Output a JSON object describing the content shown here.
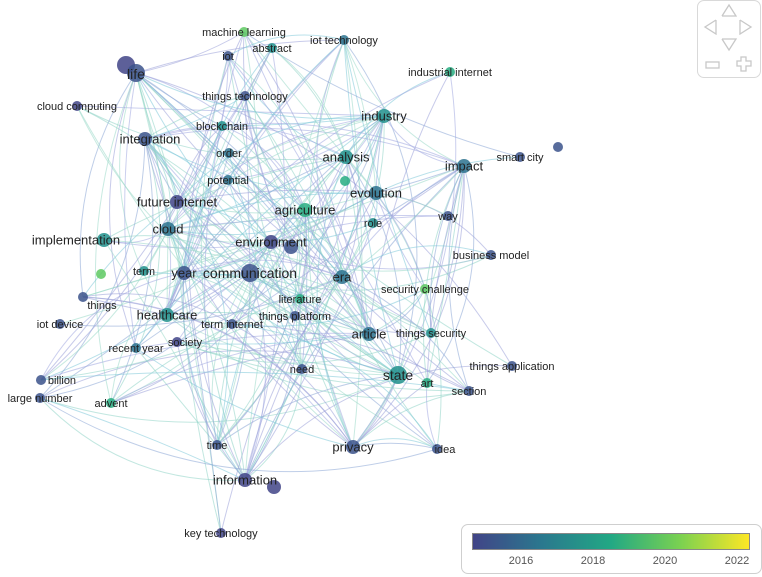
{
  "colors": {
    "c2015": "#414487",
    "c2016": "#3b528b",
    "c2017": "#2c728e",
    "c2018": "#21918c",
    "c2019": "#27ad81",
    "c2020": "#5ec962",
    "c2022": "#fde725"
  },
  "legend": {
    "ticks": [
      "2016",
      "2018",
      "2020",
      "2022"
    ],
    "gradient": [
      "#414487",
      "#2a788e",
      "#22a884",
      "#7ad151",
      "#fde725"
    ]
  },
  "navigation": {
    "up_icon": "chevron-up-icon",
    "down_icon": "chevron-down-icon",
    "left_icon": "chevron-left-icon",
    "right_icon": "chevron-right-icon",
    "zoom_out_icon": "minus-icon",
    "zoom_in_icon": "plus-icon"
  },
  "nodes": [
    {
      "id": "life",
      "label": "life",
      "year": 2016,
      "size": 3
    },
    {
      "id": "iot",
      "label": "iot",
      "year": 2016,
      "size": 1
    },
    {
      "id": "machine-learning",
      "label": "machine learning",
      "year": 2020,
      "size": 1
    },
    {
      "id": "abstract",
      "label": "abstract",
      "year": 2018,
      "size": 1
    },
    {
      "id": "iot-technology",
      "label": "iot technology",
      "year": 2017,
      "size": 1
    },
    {
      "id": "industrial-internet",
      "label": "industrial internet",
      "year": 2019,
      "size": 1
    },
    {
      "id": "things-technology",
      "label": "things technology",
      "year": 2016,
      "size": 1
    },
    {
      "id": "cloud-computing",
      "label": "cloud computing",
      "year": 2015,
      "size": 1
    },
    {
      "id": "integration",
      "label": "integration",
      "year": 2016,
      "size": 2
    },
    {
      "id": "blockchain",
      "label": "blockchain",
      "year": 2018,
      "size": 1
    },
    {
      "id": "industry",
      "label": "industry",
      "year": 2018,
      "size": 2
    },
    {
      "id": "order",
      "label": "order",
      "year": 2017,
      "size": 1
    },
    {
      "id": "analysis",
      "label": "analysis",
      "year": 2018,
      "size": 2
    },
    {
      "id": "impact",
      "label": "impact",
      "year": 2017,
      "size": 2
    },
    {
      "id": "smart-city",
      "label": "smart city",
      "year": 2016,
      "size": 1
    },
    {
      "id": "potential",
      "label": "potential",
      "year": 2017,
      "size": 1
    },
    {
      "id": "evolution",
      "label": "evolution",
      "year": 2017,
      "size": 2
    },
    {
      "id": "future-internet",
      "label": "future internet",
      "year": 2015,
      "size": 2
    },
    {
      "id": "agriculture",
      "label": "agriculture",
      "year": 2019,
      "size": 2
    },
    {
      "id": "way",
      "label": "way",
      "year": 2016,
      "size": 1
    },
    {
      "id": "role",
      "label": "role",
      "year": 2018,
      "size": 1
    },
    {
      "id": "cloud",
      "label": "cloud",
      "year": 2017,
      "size": 2
    },
    {
      "id": "implementation",
      "label": "implementation",
      "year": 2018,
      "size": 2
    },
    {
      "id": "environment",
      "label": "environment",
      "year": 2015,
      "size": 2
    },
    {
      "id": "business-model",
      "label": "business model",
      "year": 2016,
      "size": 1
    },
    {
      "id": "term",
      "label": "term",
      "year": 2018,
      "size": 1
    },
    {
      "id": "year",
      "label": "year",
      "year": 2016,
      "size": 2
    },
    {
      "id": "communication",
      "label": "communication",
      "year": 2016,
      "size": 3
    },
    {
      "id": "era",
      "label": "era",
      "year": 2017,
      "size": 2
    },
    {
      "id": "things",
      "label": "things",
      "year": 2016,
      "size": 1
    },
    {
      "id": "security-challenge",
      "label": "security challenge",
      "year": 2020,
      "size": 1
    },
    {
      "id": "literature",
      "label": "literature",
      "year": 2019,
      "size": 1
    },
    {
      "id": "healthcare",
      "label": "healthcare",
      "year": 2018,
      "size": 2
    },
    {
      "id": "things-platform",
      "label": "things platform",
      "year": 2016,
      "size": 1
    },
    {
      "id": "iot-device",
      "label": "iot device",
      "year": 2016,
      "size": 1
    },
    {
      "id": "term-internet",
      "label": "term internet",
      "year": 2016,
      "size": 1
    },
    {
      "id": "article",
      "label": "article",
      "year": 2017,
      "size": 2
    },
    {
      "id": "things-security",
      "label": "things security",
      "year": 2018,
      "size": 1
    },
    {
      "id": "recent-year",
      "label": "recent year",
      "year": 2017,
      "size": 1
    },
    {
      "id": "society",
      "label": "society",
      "year": 2015,
      "size": 1
    },
    {
      "id": "need",
      "label": "need",
      "year": 2016,
      "size": 1
    },
    {
      "id": "state",
      "label": "state",
      "year": 2018,
      "size": 3
    },
    {
      "id": "things-application",
      "label": "things application",
      "year": 2016,
      "size": 1
    },
    {
      "id": "art",
      "label": "art",
      "year": 2019,
      "size": 1
    },
    {
      "id": "billion",
      "label": "billion",
      "year": 2016,
      "size": 1
    },
    {
      "id": "section",
      "label": "section",
      "year": 2016,
      "size": 1
    },
    {
      "id": "large-number",
      "label": "large number",
      "year": 2016,
      "size": 1
    },
    {
      "id": "advent",
      "label": "advent",
      "year": 2019,
      "size": 1
    },
    {
      "id": "time",
      "label": "time",
      "year": 2016,
      "size": 1
    },
    {
      "id": "privacy",
      "label": "privacy",
      "year": 2016,
      "size": 2
    },
    {
      "id": "idea",
      "label": "idea",
      "year": 2016,
      "size": 1
    },
    {
      "id": "information",
      "label": "information",
      "year": 2015,
      "size": 2
    },
    {
      "id": "key-technology",
      "label": "key technology",
      "year": 2015,
      "size": 1
    }
  ]
}
